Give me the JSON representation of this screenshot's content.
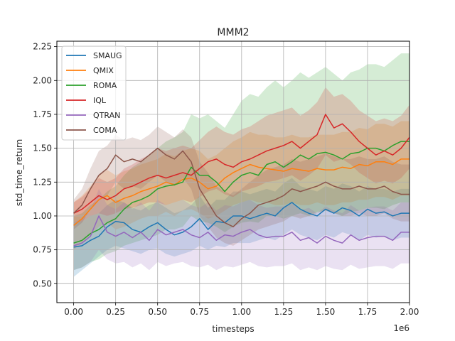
{
  "chart_data": {
    "type": "line",
    "title": "MMM2",
    "xlabel": "timesteps",
    "ylabel": "std_time_return",
    "x_offset_label": "1e6",
    "xlim": [
      -0.1,
      2.0
    ],
    "ylim": [
      0.36,
      2.29
    ],
    "xticks": [
      0.0,
      0.25,
      0.5,
      0.75,
      1.0,
      1.25,
      1.5,
      1.75,
      2.0
    ],
    "xtick_labels": [
      "0.00",
      "0.25",
      "0.50",
      "0.75",
      "1.00",
      "1.25",
      "1.50",
      "1.75",
      "2.00"
    ],
    "yticks": [
      0.5,
      0.75,
      1.0,
      1.25,
      1.5,
      1.75,
      2.0,
      2.25
    ],
    "ytick_labels": [
      "0.50",
      "0.75",
      "1.00",
      "1.25",
      "1.50",
      "1.75",
      "2.00",
      "2.25"
    ],
    "grid": true,
    "legend_position": "top-left",
    "x": [
      0.0,
      0.05,
      0.1,
      0.15,
      0.2,
      0.25,
      0.3,
      0.35,
      0.4,
      0.45,
      0.5,
      0.55,
      0.6,
      0.65,
      0.7,
      0.75,
      0.8,
      0.85,
      0.9,
      0.95,
      1.0,
      1.05,
      1.1,
      1.15,
      1.2,
      1.25,
      1.3,
      1.35,
      1.4,
      1.45,
      1.5,
      1.55,
      1.6,
      1.65,
      1.7,
      1.75,
      1.8,
      1.85,
      1.9,
      1.95,
      2.0
    ],
    "series": [
      {
        "name": "SMAUG",
        "color": "#1f77b4",
        "values": [
          0.77,
          0.78,
          0.82,
          0.85,
          0.92,
          0.96,
          0.95,
          0.9,
          0.88,
          0.92,
          0.95,
          0.9,
          0.86,
          0.88,
          0.92,
          0.98,
          0.9,
          0.96,
          0.95,
          1.0,
          1.0,
          0.98,
          1.0,
          1.02,
          1.0,
          1.06,
          1.1,
          1.05,
          1.02,
          1.0,
          1.05,
          1.02,
          1.06,
          1.04,
          1.0,
          1.05,
          1.02,
          1.03,
          1.0,
          1.02,
          1.02
        ],
        "lower": [
          0.55,
          0.6,
          0.65,
          0.7,
          0.75,
          0.78,
          0.76,
          0.74,
          0.72,
          0.75,
          0.76,
          0.72,
          0.7,
          0.72,
          0.74,
          0.78,
          0.75,
          0.78,
          0.77,
          0.8,
          0.8,
          0.8,
          0.82,
          0.84,
          0.82,
          0.86,
          0.9,
          0.86,
          0.84,
          0.82,
          0.86,
          0.84,
          0.88,
          0.86,
          0.82,
          0.86,
          0.84,
          0.85,
          0.82,
          0.84,
          0.84
        ],
        "upper": [
          0.95,
          0.96,
          1.0,
          1.02,
          1.08,
          1.12,
          1.1,
          1.06,
          1.04,
          1.08,
          1.1,
          1.06,
          1.02,
          1.04,
          1.08,
          1.15,
          1.06,
          1.12,
          1.12,
          1.18,
          1.18,
          1.16,
          1.18,
          1.2,
          1.18,
          1.24,
          1.28,
          1.22,
          1.2,
          1.18,
          1.22,
          1.2,
          1.24,
          1.22,
          1.18,
          1.22,
          1.2,
          1.2,
          1.18,
          1.2,
          1.2
        ]
      },
      {
        "name": "QMIX",
        "color": "#ff7f0e",
        "values": [
          0.93,
          0.98,
          1.05,
          1.12,
          1.15,
          1.1,
          1.13,
          1.15,
          1.18,
          1.2,
          1.22,
          1.25,
          1.23,
          1.27,
          1.28,
          1.25,
          1.2,
          1.22,
          1.28,
          1.32,
          1.35,
          1.38,
          1.36,
          1.35,
          1.34,
          1.33,
          1.35,
          1.34,
          1.33,
          1.35,
          1.34,
          1.34,
          1.36,
          1.35,
          1.38,
          1.37,
          1.4,
          1.4,
          1.38,
          1.42,
          1.42
        ],
        "lower": [
          0.75,
          0.8,
          0.86,
          0.92,
          0.95,
          0.9,
          0.92,
          0.95,
          0.98,
          1.0,
          1.0,
          1.03,
          1.0,
          1.04,
          1.05,
          1.02,
          0.98,
          1.0,
          1.04,
          1.08,
          1.1,
          1.12,
          1.1,
          1.1,
          1.08,
          1.08,
          1.1,
          1.08,
          1.08,
          1.1,
          1.08,
          1.08,
          1.1,
          1.1,
          1.12,
          1.12,
          1.14,
          1.14,
          1.12,
          1.15,
          1.15
        ],
        "upper": [
          1.1,
          1.15,
          1.22,
          1.3,
          1.34,
          1.3,
          1.33,
          1.35,
          1.38,
          1.4,
          1.42,
          1.46,
          1.44,
          1.48,
          1.5,
          1.48,
          1.42,
          1.45,
          1.5,
          1.55,
          1.58,
          1.62,
          1.6,
          1.6,
          1.58,
          1.58,
          1.6,
          1.58,
          1.58,
          1.6,
          1.6,
          1.6,
          1.62,
          1.62,
          1.65,
          1.64,
          1.68,
          1.68,
          1.66,
          1.7,
          1.7
        ]
      },
      {
        "name": "ROMA",
        "color": "#2ca02c",
        "values": [
          0.8,
          0.82,
          0.87,
          0.9,
          0.95,
          0.98,
          1.05,
          1.1,
          1.12,
          1.15,
          1.2,
          1.22,
          1.23,
          1.25,
          1.36,
          1.3,
          1.3,
          1.25,
          1.18,
          1.25,
          1.3,
          1.32,
          1.3,
          1.38,
          1.4,
          1.36,
          1.4,
          1.45,
          1.42,
          1.46,
          1.47,
          1.45,
          1.42,
          1.46,
          1.47,
          1.5,
          1.5,
          1.48,
          1.52,
          1.55,
          1.55
        ],
        "lower": [
          0.6,
          0.62,
          0.66,
          0.68,
          0.72,
          0.74,
          0.78,
          0.8,
          0.82,
          0.84,
          0.86,
          0.9,
          0.9,
          0.92,
          1.0,
          0.96,
          0.95,
          0.92,
          0.88,
          0.92,
          0.95,
          0.96,
          0.95,
          1.0,
          1.0,
          0.98,
          1.0,
          1.02,
          1.0,
          1.03,
          1.04,
          1.02,
          1.0,
          1.03,
          1.04,
          1.06,
          1.06,
          1.05,
          1.08,
          1.1,
          1.1
        ],
        "upper": [
          1.0,
          1.02,
          1.08,
          1.12,
          1.18,
          1.22,
          1.3,
          1.36,
          1.4,
          1.45,
          1.5,
          1.55,
          1.58,
          1.62,
          1.75,
          1.72,
          1.75,
          1.7,
          1.65,
          1.75,
          1.85,
          1.9,
          1.88,
          1.95,
          2.0,
          1.95,
          2.0,
          2.06,
          2.02,
          2.06,
          2.1,
          2.05,
          2.0,
          2.06,
          2.08,
          2.12,
          2.12,
          2.1,
          2.15,
          2.2,
          2.2
        ]
      },
      {
        "name": "IQL",
        "color": "#d62728",
        "values": [
          1.02,
          1.05,
          1.1,
          1.15,
          1.12,
          1.15,
          1.2,
          1.22,
          1.25,
          1.28,
          1.3,
          1.28,
          1.3,
          1.32,
          1.3,
          1.35,
          1.4,
          1.42,
          1.38,
          1.36,
          1.4,
          1.42,
          1.45,
          1.48,
          1.5,
          1.52,
          1.55,
          1.5,
          1.55,
          1.6,
          1.75,
          1.65,
          1.68,
          1.62,
          1.55,
          1.5,
          1.45,
          1.48,
          1.45,
          1.5,
          1.58
        ],
        "lower": [
          0.95,
          0.96,
          1.0,
          1.02,
          1.0,
          1.02,
          1.05,
          1.06,
          1.08,
          1.1,
          1.1,
          1.08,
          1.1,
          1.12,
          1.1,
          1.14,
          1.18,
          1.2,
          1.16,
          1.14,
          1.18,
          1.2,
          1.22,
          1.25,
          1.26,
          1.28,
          1.3,
          1.26,
          1.3,
          1.35,
          1.45,
          1.4,
          1.42,
          1.38,
          1.32,
          1.28,
          1.24,
          1.26,
          1.24,
          1.28,
          1.35
        ],
        "upper": [
          1.1,
          1.14,
          1.2,
          1.28,
          1.25,
          1.28,
          1.35,
          1.38,
          1.42,
          1.45,
          1.5,
          1.48,
          1.5,
          1.52,
          1.5,
          1.56,
          1.62,
          1.66,
          1.62,
          1.6,
          1.64,
          1.66,
          1.7,
          1.74,
          1.76,
          1.78,
          1.8,
          1.74,
          1.78,
          1.84,
          1.95,
          1.88,
          1.9,
          1.85,
          1.78,
          1.74,
          1.7,
          1.72,
          1.7,
          1.74,
          1.82
        ]
      },
      {
        "name": "QTRAN",
        "color": "#9467bd",
        "values": [
          0.78,
          0.8,
          0.85,
          1.0,
          0.88,
          0.85,
          0.88,
          0.84,
          0.88,
          0.82,
          0.9,
          0.86,
          0.88,
          0.9,
          0.86,
          0.84,
          0.88,
          0.82,
          0.86,
          0.85,
          0.88,
          0.9,
          0.86,
          0.84,
          0.85,
          0.85,
          0.88,
          0.82,
          0.84,
          0.8,
          0.85,
          0.82,
          0.8,
          0.86,
          0.82,
          0.84,
          0.85,
          0.85,
          0.82,
          0.88,
          0.88
        ],
        "lower": [
          0.6,
          0.62,
          0.66,
          0.75,
          0.68,
          0.65,
          0.66,
          0.62,
          0.65,
          0.6,
          0.66,
          0.63,
          0.65,
          0.66,
          0.63,
          0.62,
          0.64,
          0.6,
          0.63,
          0.62,
          0.64,
          0.66,
          0.63,
          0.62,
          0.63,
          0.63,
          0.65,
          0.6,
          0.62,
          0.6,
          0.63,
          0.61,
          0.6,
          0.64,
          0.61,
          0.62,
          0.63,
          0.63,
          0.61,
          0.65,
          0.65
        ],
        "upper": [
          0.95,
          0.98,
          1.04,
          1.2,
          1.08,
          1.05,
          1.1,
          1.05,
          1.1,
          1.04,
          1.12,
          1.08,
          1.1,
          1.12,
          1.08,
          1.06,
          1.1,
          1.04,
          1.08,
          1.07,
          1.1,
          1.12,
          1.08,
          1.06,
          1.07,
          1.07,
          1.1,
          1.04,
          1.06,
          1.02,
          1.07,
          1.04,
          1.02,
          1.08,
          1.04,
          1.06,
          1.07,
          1.07,
          1.04,
          1.1,
          1.1
        ]
      },
      {
        "name": "COMA",
        "color": "#8c564b",
        "values": [
          1.02,
          1.08,
          1.2,
          1.3,
          1.35,
          1.45,
          1.4,
          1.42,
          1.4,
          1.45,
          1.5,
          1.45,
          1.42,
          1.48,
          1.4,
          1.2,
          1.1,
          1.0,
          0.95,
          0.92,
          0.98,
          1.02,
          1.08,
          1.1,
          1.12,
          1.15,
          1.2,
          1.18,
          1.2,
          1.22,
          1.25,
          1.22,
          1.2,
          1.2,
          1.22,
          1.2,
          1.2,
          1.22,
          1.18,
          1.16,
          1.16
        ],
        "lower": [
          0.9,
          0.95,
          1.05,
          1.12,
          1.15,
          1.25,
          1.2,
          1.22,
          1.2,
          1.25,
          1.3,
          1.25,
          1.22,
          1.28,
          1.2,
          1.0,
          0.92,
          0.84,
          0.8,
          0.78,
          0.82,
          0.86,
          0.9,
          0.92,
          0.94,
          0.96,
          1.0,
          0.98,
          1.0,
          1.02,
          1.04,
          1.02,
          1.0,
          1.0,
          1.02,
          1.0,
          1.0,
          1.02,
          0.98,
          0.96,
          0.96
        ],
        "upper": [
          1.12,
          1.2,
          1.35,
          1.48,
          1.52,
          1.6,
          1.56,
          1.58,
          1.56,
          1.6,
          1.66,
          1.62,
          1.58,
          1.64,
          1.58,
          1.4,
          1.32,
          1.22,
          1.18,
          1.15,
          1.2,
          1.25,
          1.3,
          1.34,
          1.36,
          1.38,
          1.42,
          1.4,
          1.42,
          1.44,
          1.46,
          1.44,
          1.42,
          1.42,
          1.44,
          1.42,
          1.42,
          1.44,
          1.4,
          1.38,
          1.38
        ]
      }
    ]
  }
}
